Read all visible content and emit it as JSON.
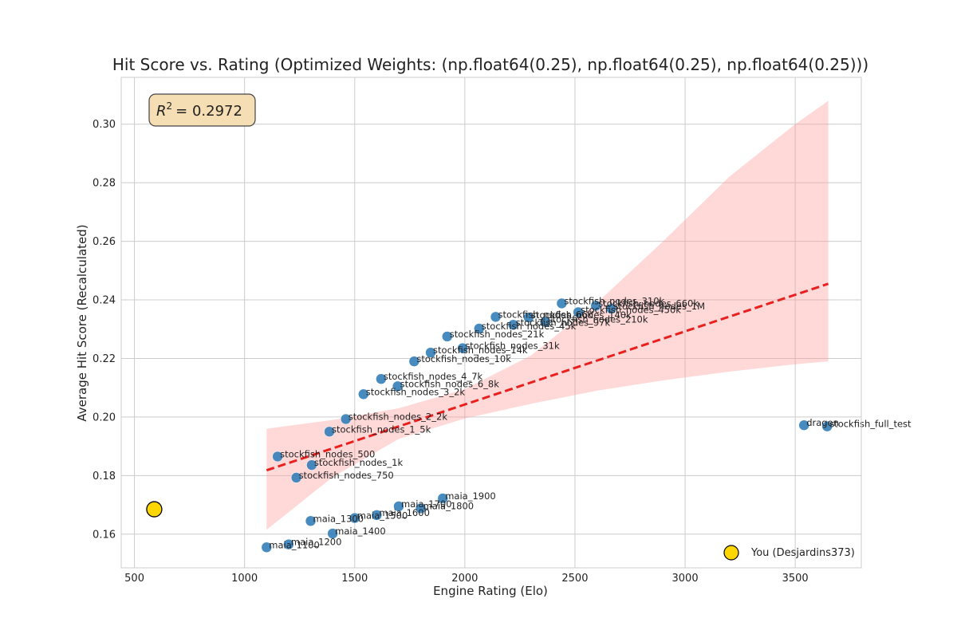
{
  "chart_data": {
    "type": "scatter",
    "title": "Hit Score vs. Rating (Optimized Weights: (np.float64(0.25), np.float64(0.25), np.float64(0.25)))",
    "xlabel": "Engine Rating (Elo)",
    "ylabel": "Average Hit Score (Recalculated)",
    "xlim": [
      440,
      3800
    ],
    "ylim": [
      0.1485,
      0.316
    ],
    "x_ticks": [
      500,
      1000,
      1500,
      2000,
      2500,
      3000,
      3500
    ],
    "y_ticks": [
      0.16,
      0.18,
      0.2,
      0.22,
      0.24,
      0.26,
      0.28,
      0.3
    ],
    "grid": true,
    "r2_annotation": {
      "prefix": "R",
      "sup": "2",
      "value_text": "= 0.2972",
      "r2": 0.2972
    },
    "series": [
      {
        "points": [
          {
            "label": "maia_1100",
            "x": 1100,
            "y": 0.1555
          },
          {
            "label": "maia_1200",
            "x": 1200,
            "y": 0.1565
          },
          {
            "label": "maia_1300",
            "x": 1300,
            "y": 0.1645
          },
          {
            "label": "maia_1400",
            "x": 1400,
            "y": 0.1602
          },
          {
            "label": "maia_1500",
            "x": 1500,
            "y": 0.1655
          },
          {
            "label": "maia_1600",
            "x": 1600,
            "y": 0.1665
          },
          {
            "label": "maia_1700",
            "x": 1700,
            "y": 0.1695
          },
          {
            "label": "maia_1800",
            "x": 1800,
            "y": 0.1688
          },
          {
            "label": "maia_1900",
            "x": 1900,
            "y": 0.1722
          },
          {
            "label": "stockfish_nodes_500",
            "x": 1150,
            "y": 0.1865
          },
          {
            "label": "stockfish_nodes_750",
            "x": 1235,
            "y": 0.1793
          },
          {
            "label": "stockfish_nodes_1k",
            "x": 1305,
            "y": 0.1836
          },
          {
            "label": "stockfish_nodes_1_5k",
            "x": 1385,
            "y": 0.195
          },
          {
            "label": "stockfish_nodes_2_2k",
            "x": 1460,
            "y": 0.1993
          },
          {
            "label": "stockfish_nodes_3_2k",
            "x": 1540,
            "y": 0.2078
          },
          {
            "label": "stockfish_nodes_4_7k",
            "x": 1620,
            "y": 0.213
          },
          {
            "label": "stockfish_nodes_6_8k",
            "x": 1695,
            "y": 0.2105
          },
          {
            "label": "stockfish_nodes_10k",
            "x": 1770,
            "y": 0.219
          },
          {
            "label": "stockfish_nodes_14k",
            "x": 1845,
            "y": 0.222
          },
          {
            "label": "stockfish_nodes_21k",
            "x": 1920,
            "y": 0.2275
          },
          {
            "label": "stockfish_nodes_31k",
            "x": 1990,
            "y": 0.2235
          },
          {
            "label": "stockfish_nodes_45k",
            "x": 2065,
            "y": 0.2302
          },
          {
            "label": "stockfish_nodes_66k",
            "x": 2140,
            "y": 0.2342
          },
          {
            "label": "stockfish_nodes_97k",
            "x": 2220,
            "y": 0.2315
          },
          {
            "label": "stockfish_nodes_140k",
            "x": 2290,
            "y": 0.234
          },
          {
            "label": "stockfish_nodes_210k",
            "x": 2365,
            "y": 0.2325
          },
          {
            "label": "stockfish_nodes_310k",
            "x": 2440,
            "y": 0.2388
          },
          {
            "label": "stockfish_nodes_450k",
            "x": 2515,
            "y": 0.2358
          },
          {
            "label": "stockfish_nodes_660k",
            "x": 2595,
            "y": 0.238
          },
          {
            "label": "stockfish_nodes_1M",
            "x": 2665,
            "y": 0.237
          },
          {
            "label": "dragon",
            "x": 3540,
            "y": 0.1972
          },
          {
            "label": "stockfish_full_test",
            "x": 3645,
            "y": 0.1968
          }
        ],
        "color": "#2f7bb6"
      },
      {
        "name": "You (Desjardins373)",
        "points": [
          {
            "x": 590,
            "y": 0.1685
          }
        ],
        "color": "#ffd700",
        "edge": "#000000"
      }
    ],
    "regression": {
      "x": [
        1100,
        3650
      ],
      "y": [
        0.1818,
        0.2455
      ],
      "color": "#e8201e",
      "style": "dashed",
      "band_color": "#ff9999",
      "band": {
        "x": [
          1100,
          1400,
          1700,
          2000,
          2300,
          2600,
          2900,
          3200,
          3500,
          3650
        ],
        "upper": [
          0.196,
          0.199,
          0.203,
          0.2095,
          0.221,
          0.239,
          0.26,
          0.282,
          0.3,
          0.308
        ],
        "lower": [
          0.1615,
          0.1795,
          0.1925,
          0.1995,
          0.2045,
          0.209,
          0.2125,
          0.2155,
          0.218,
          0.219
        ]
      }
    },
    "legend": {
      "placement": "bottom-right",
      "entries": [
        "You (Desjardins373)"
      ]
    }
  }
}
